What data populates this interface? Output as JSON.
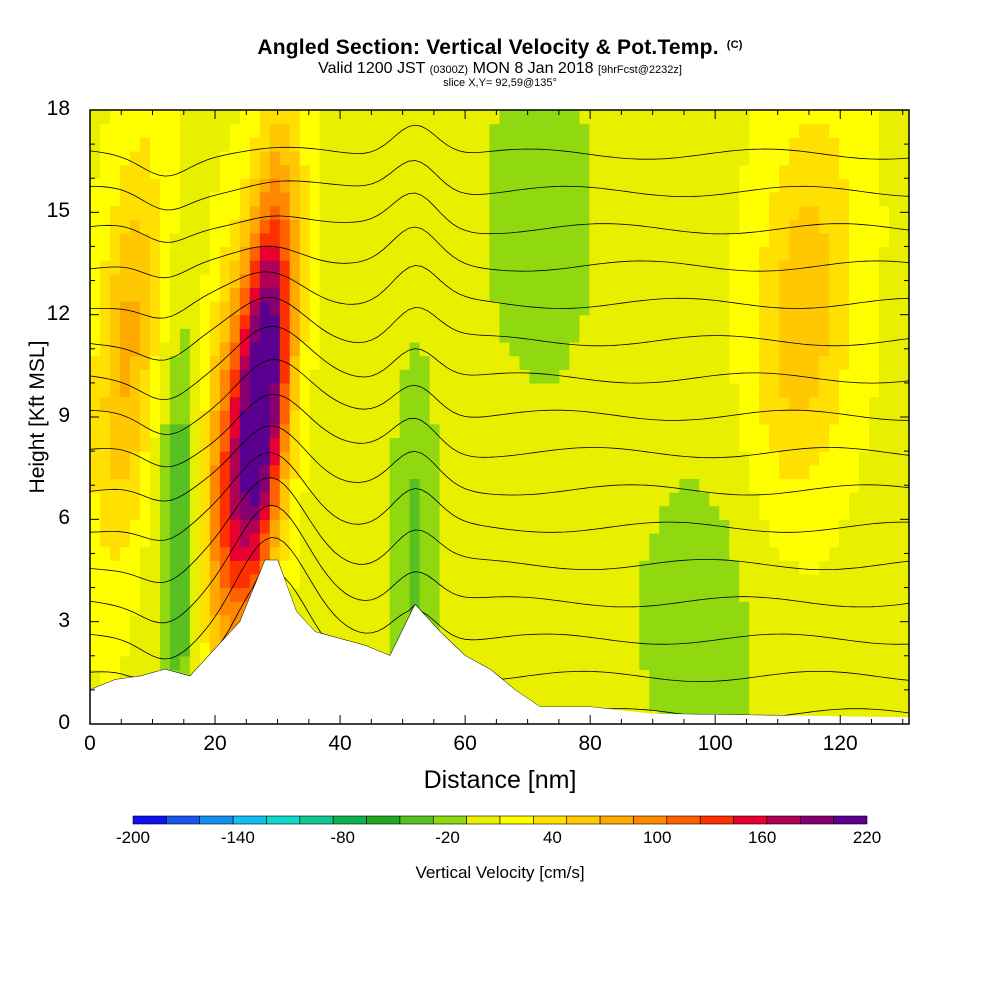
{
  "header": {
    "title": "Angled Section: Vertical Velocity & Pot.Temp.",
    "title_units": "(C)",
    "valid_prefix": "Valid 1200 JST",
    "valid_utc": "(0300Z)",
    "valid_date": "MON 8 Jan 2018",
    "forecast": "[9hrFcst@2232z]",
    "slice": "slice X,Y= 92,59@135°"
  },
  "colorbar": {
    "label": "Vertical Velocity [cm/s]",
    "tick_labels": [
      "-200",
      "-140",
      "-80",
      "-20",
      "40",
      "100",
      "160",
      "220"
    ],
    "levels": [
      -200,
      -180,
      -160,
      -140,
      -120,
      -100,
      -80,
      -60,
      -40,
      -20,
      0,
      20,
      40,
      60,
      80,
      100,
      120,
      140,
      160,
      180,
      200,
      220
    ],
    "colors": [
      "#1010ee",
      "#1a55ee",
      "#1490ee",
      "#10c0f0",
      "#10d8c8",
      "#10c890",
      "#10b050",
      "#20a820",
      "#58c020",
      "#90d810",
      "#e8f000",
      "#ffff00",
      "#ffe000",
      "#ffc800",
      "#ffa800",
      "#ff8800",
      "#ff6000",
      "#ff3000",
      "#e80030",
      "#b00058",
      "#880070",
      "#5a0090"
    ]
  },
  "chart_data": {
    "type": "heatmap",
    "title": "Angled Section: Vertical Velocity & Pot.Temp.",
    "xlabel": "Distance [nm]",
    "ylabel": "Height [Kft MSL]",
    "xlim": [
      0,
      131
    ],
    "ylim": [
      0,
      18
    ],
    "x_ticks": [
      0,
      20,
      40,
      60,
      80,
      100,
      120
    ],
    "y_ticks": [
      0,
      3,
      6,
      9,
      12,
      15,
      18
    ],
    "velocity_features": [
      {
        "kind": "updraft",
        "x": 28,
        "y": 10,
        "width_nm": 4,
        "peak": 220
      },
      {
        "kind": "updraft",
        "x": 22,
        "y": 7,
        "width_nm": 5,
        "peak": 110
      },
      {
        "kind": "updraft",
        "x": 6,
        "y": 11,
        "width_nm": 5,
        "peak": 70
      },
      {
        "kind": "updraft",
        "x": 114,
        "y": 12,
        "width_nm": 8,
        "peak": 60
      },
      {
        "kind": "downdraft",
        "x": 15,
        "y": 5,
        "width_nm": 4,
        "peak": -70
      },
      {
        "kind": "downdraft",
        "x": 52,
        "y": 5,
        "width_nm": 4,
        "peak": -40
      },
      {
        "kind": "downdraft",
        "x": 72,
        "y": 15,
        "width_nm": 10,
        "peak": -30
      },
      {
        "kind": "downdraft",
        "x": 98,
        "y": 3,
        "width_nm": 14,
        "peak": -25
      }
    ],
    "isentropes_C": [
      4,
      6,
      8,
      10,
      12,
      14,
      16,
      18,
      20,
      22,
      24,
      26,
      28,
      30,
      32,
      34
    ],
    "terrain_kft": [
      [
        0,
        1.0
      ],
      [
        4,
        1.3
      ],
      [
        8,
        1.4
      ],
      [
        12,
        1.6
      ],
      [
        16,
        1.4
      ],
      [
        20,
        2.2
      ],
      [
        24,
        3.0
      ],
      [
        28,
        4.8
      ],
      [
        30,
        4.8
      ],
      [
        33,
        3.3
      ],
      [
        36,
        2.7
      ],
      [
        40,
        2.5
      ],
      [
        44,
        2.3
      ],
      [
        48,
        2.0
      ],
      [
        52,
        3.5
      ],
      [
        56,
        2.7
      ],
      [
        60,
        2.0
      ],
      [
        64,
        1.6
      ],
      [
        68,
        1.0
      ],
      [
        72,
        0.5
      ],
      [
        80,
        0.5
      ],
      [
        90,
        0.3
      ],
      [
        131,
        0.2
      ]
    ]
  }
}
